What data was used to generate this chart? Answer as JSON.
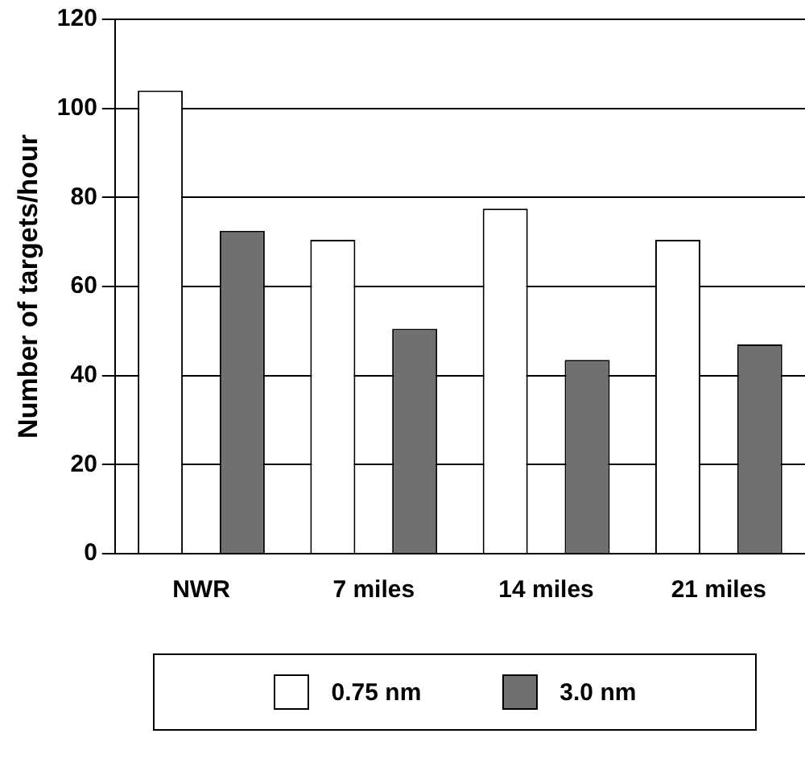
{
  "chart_data": {
    "type": "bar",
    "ylabel": "Number of targets/hour",
    "categories": [
      "NWR",
      "7 miles",
      "14 miles",
      "21 miles"
    ],
    "series": [
      {
        "name": "0.75 nm",
        "color": "#ffffff",
        "values": [
          104,
          70.5,
          77.5,
          70.5
        ]
      },
      {
        "name": "3.0 nm",
        "color": "#707070",
        "values": [
          72.5,
          50.5,
          43.5,
          47
        ]
      }
    ],
    "ylim": [
      0,
      120
    ],
    "yticks": [
      0,
      20,
      40,
      60,
      80,
      100,
      120
    ],
    "grid": "y",
    "legend": "bottom"
  }
}
